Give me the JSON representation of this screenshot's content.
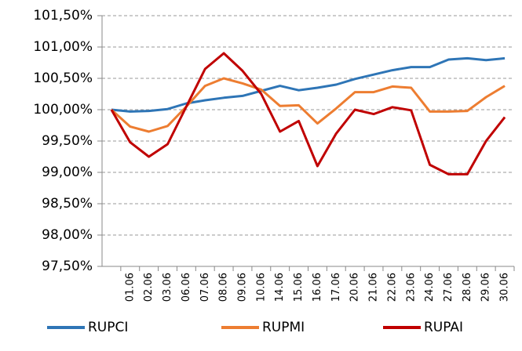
{
  "chart_data": {
    "type": "line",
    "categories": [
      null,
      "01.06",
      "02.06",
      "03.06",
      "06.06",
      "07.06",
      "08.06",
      "09.06",
      "10.06",
      "14.06",
      "15.06",
      "16.06",
      "17.06",
      "20.06",
      "21.06",
      "22.06",
      "23.06",
      "24.06",
      "27.06",
      "28.06",
      "29.06",
      "30.06"
    ],
    "series": [
      {
        "name": "RUPCI",
        "color": "#2e75b6",
        "values": [
          100.0,
          99.97,
          99.98,
          100.01,
          100.1,
          100.15,
          100.19,
          100.22,
          100.3,
          100.38,
          100.31,
          100.35,
          100.4,
          100.49,
          100.56,
          100.63,
          100.68,
          100.68,
          100.8,
          100.82,
          100.79,
          100.82
        ]
      },
      {
        "name": "RUPMI",
        "color": "#ed7d31",
        "values": [
          100.0,
          99.73,
          99.65,
          99.74,
          100.05,
          100.38,
          100.5,
          100.42,
          100.32,
          100.06,
          100.07,
          99.78,
          100.02,
          100.28,
          100.28,
          100.37,
          100.35,
          99.97,
          99.97,
          99.98,
          100.2,
          100.38
        ]
      },
      {
        "name": "RUPAI",
        "color": "#c00000",
        "values": [
          100.0,
          99.48,
          99.25,
          99.45,
          100.05,
          100.65,
          100.9,
          100.62,
          100.25,
          99.65,
          99.82,
          99.1,
          99.62,
          100.0,
          99.93,
          100.04,
          99.99,
          99.12,
          98.97,
          98.97,
          99.5,
          99.88
        ]
      }
    ],
    "ylim": [
      97.5,
      101.5
    ],
    "yticks": [
      {
        "value": 97.5,
        "label": "97,50%"
      },
      {
        "value": 98,
        "label": "98,00%"
      },
      {
        "value": 98.5,
        "label": "98,50%"
      },
      {
        "value": 99,
        "label": "99,00%"
      },
      {
        "value": 99.5,
        "label": "99,50%"
      },
      {
        "value": 100,
        "label": "100,00%"
      },
      {
        "value": 100.5,
        "label": "100,50%"
      },
      {
        "value": 101,
        "label": "101,00%"
      },
      {
        "value": 101.5,
        "label": "101,50%"
      }
    ],
    "grid": true,
    "legend": "bottom"
  }
}
